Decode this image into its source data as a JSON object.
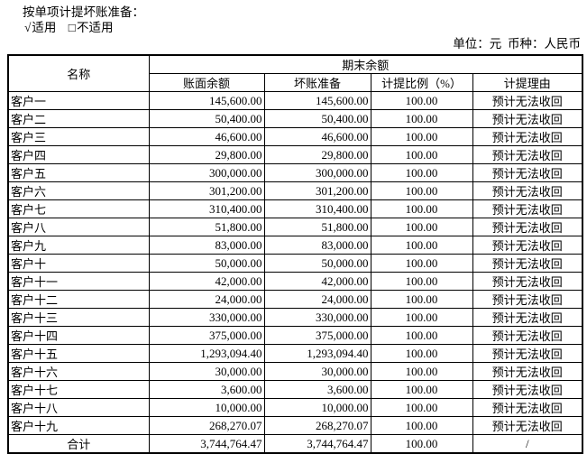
{
  "page": {
    "title": "按单项计提坏账准备：",
    "applicability": {
      "applicable_mark": "√",
      "applicable_label": "适用",
      "not_applicable_mark": "□",
      "not_applicable_label": "不适用"
    },
    "unit_note": "单位：元  币种：人民币"
  },
  "table": {
    "headers": {
      "name": "名称",
      "period_end_balance": "期末余额",
      "book_balance": "账面余额",
      "bad_debt_provision": "坏账准备",
      "provision_ratio": "计提比例（%）",
      "provision_reason": "计提理由"
    },
    "rows": [
      {
        "name": "客户一",
        "book_balance": "145,600.00",
        "provision": "145,600.00",
        "ratio": "100.00",
        "reason": "预计无法收回"
      },
      {
        "name": "客户二",
        "book_balance": "50,400.00",
        "provision": "50,400.00",
        "ratio": "100.00",
        "reason": "预计无法收回"
      },
      {
        "name": "客户三",
        "book_balance": "46,600.00",
        "provision": "46,600.00",
        "ratio": "100.00",
        "reason": "预计无法收回"
      },
      {
        "name": "客户四",
        "book_balance": "29,800.00",
        "provision": "29,800.00",
        "ratio": "100.00",
        "reason": "预计无法收回"
      },
      {
        "name": "客户五",
        "book_balance": "300,000.00",
        "provision": "300,000.00",
        "ratio": "100.00",
        "reason": "预计无法收回"
      },
      {
        "name": "客户六",
        "book_balance": "301,200.00",
        "provision": "301,200.00",
        "ratio": "100.00",
        "reason": "预计无法收回"
      },
      {
        "name": "客户七",
        "book_balance": "310,400.00",
        "provision": "310,400.00",
        "ratio": "100.00",
        "reason": "预计无法收回"
      },
      {
        "name": "客户八",
        "book_balance": "51,800.00",
        "provision": "51,800.00",
        "ratio": "100.00",
        "reason": "预计无法收回"
      },
      {
        "name": "客户九",
        "book_balance": "83,000.00",
        "provision": "83,000.00",
        "ratio": "100.00",
        "reason": "预计无法收回"
      },
      {
        "name": "客户十",
        "book_balance": "50,000.00",
        "provision": "50,000.00",
        "ratio": "100.00",
        "reason": "预计无法收回"
      },
      {
        "name": "客户十一",
        "book_balance": "42,000.00",
        "provision": "42,000.00",
        "ratio": "100.00",
        "reason": "预计无法收回"
      },
      {
        "name": "客户十二",
        "book_balance": "24,000.00",
        "provision": "24,000.00",
        "ratio": "100.00",
        "reason": "预计无法收回"
      },
      {
        "name": "客户十三",
        "book_balance": "330,000.00",
        "provision": "330,000.00",
        "ratio": "100.00",
        "reason": "预计无法收回"
      },
      {
        "name": "客户十四",
        "book_balance": "375,000.00",
        "provision": "375,000.00",
        "ratio": "100.00",
        "reason": "预计无法收回"
      },
      {
        "name": "客户十五",
        "book_balance": "1,293,094.40",
        "provision": "1,293,094.40",
        "ratio": "100.00",
        "reason": "预计无法收回"
      },
      {
        "name": "客户十六",
        "book_balance": "30,000.00",
        "provision": "30,000.00",
        "ratio": "100.00",
        "reason": "预计无法收回"
      },
      {
        "name": "客户十七",
        "book_balance": "3,600.00",
        "provision": "3,600.00",
        "ratio": "100.00",
        "reason": "预计无法收回"
      },
      {
        "name": "客户十八",
        "book_balance": "10,000.00",
        "provision": "10,000.00",
        "ratio": "100.00",
        "reason": "预计无法收回"
      },
      {
        "name": "客户十九",
        "book_balance": "268,270.07",
        "provision": "268,270.07",
        "ratio": "100.00",
        "reason": "预计无法收回"
      }
    ],
    "total_row": {
      "name": "合计",
      "book_balance": "3,744,764.47",
      "provision": "3,744,764.47",
      "ratio": "100.00",
      "reason": "/"
    }
  }
}
